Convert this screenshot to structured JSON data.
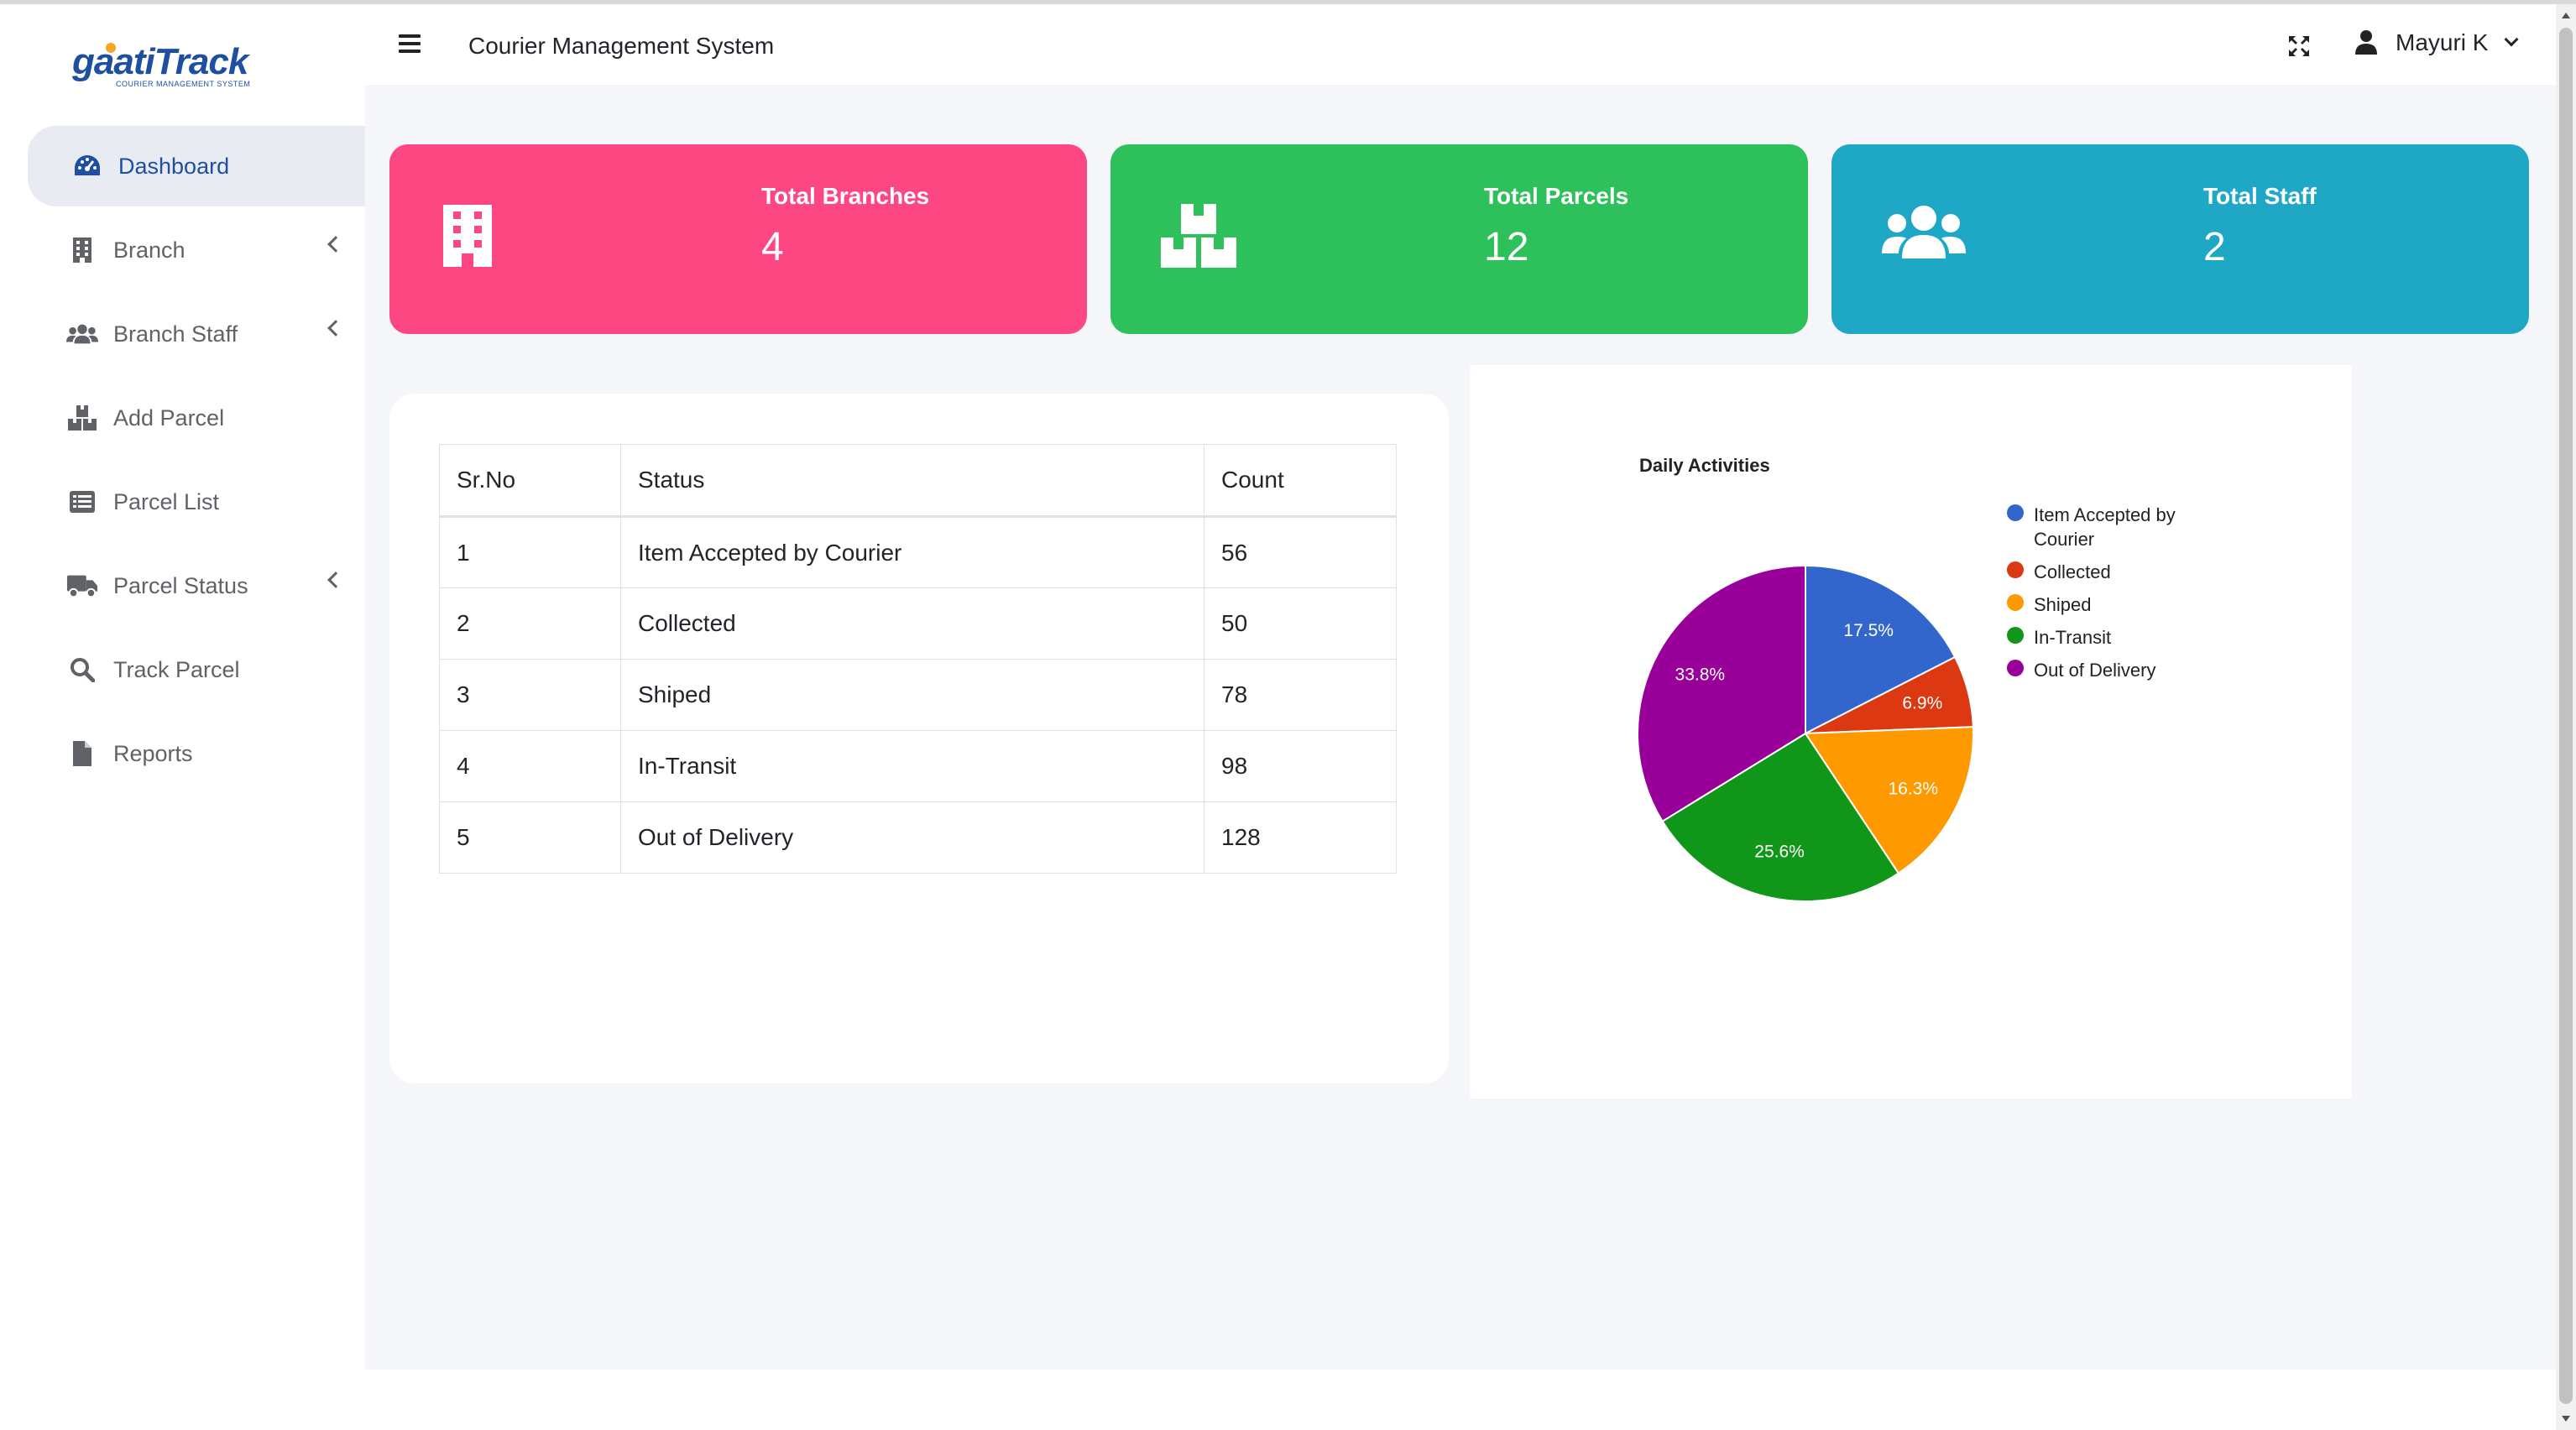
{
  "brand": {
    "logo_text": "gaatiTrack",
    "logo_subtitle": "COURIER MANAGEMENT SYSTEM"
  },
  "sidebar": {
    "items": [
      {
        "label": "Dashboard",
        "icon": "dashboard-gauge-icon",
        "active": true,
        "has_submenu": false
      },
      {
        "label": "Branch",
        "icon": "building-icon",
        "active": false,
        "has_submenu": true
      },
      {
        "label": "Branch Staff",
        "icon": "users-icon",
        "active": false,
        "has_submenu": true
      },
      {
        "label": "Add Parcel",
        "icon": "boxes-icon",
        "active": false,
        "has_submenu": false
      },
      {
        "label": "Parcel List",
        "icon": "list-icon",
        "active": false,
        "has_submenu": false
      },
      {
        "label": "Parcel Status",
        "icon": "truck-icon",
        "active": false,
        "has_submenu": true
      },
      {
        "label": "Track Parcel",
        "icon": "search-icon",
        "active": false,
        "has_submenu": false
      },
      {
        "label": "Reports",
        "icon": "file-icon",
        "active": false,
        "has_submenu": false
      }
    ]
  },
  "header": {
    "title": "Courier Management System",
    "user_name": "Mayuri K"
  },
  "cards": [
    {
      "title": "Total Branches",
      "value": "4",
      "color": "#fd4783",
      "icon": "building-icon"
    },
    {
      "title": "Total Parcels",
      "value": "12",
      "color": "#2ec05a",
      "icon": "boxes-icon"
    },
    {
      "title": "Total Staff",
      "value": "2",
      "color": "#1ea8c6",
      "icon": "users-icon"
    }
  ],
  "status_table": {
    "headers": [
      "Sr.No",
      "Status",
      "Count"
    ],
    "rows": [
      [
        "1",
        "Item Accepted by Courier",
        "56"
      ],
      [
        "2",
        "Collected",
        "50"
      ],
      [
        "3",
        "Shiped",
        "78"
      ],
      [
        "4",
        "In-Transit",
        "98"
      ],
      [
        "5",
        "Out of Delivery",
        "128"
      ]
    ]
  },
  "chart_data": {
    "type": "pie",
    "title": "Daily Activities",
    "legend_position": "right",
    "categories": [
      "Item Accepted by Courier",
      "Collected",
      "Shiped",
      "In-Transit",
      "Out of Delivery"
    ],
    "values": [
      17.5,
      6.9,
      16.3,
      25.6,
      33.8
    ],
    "labels": [
      "17.5%",
      "6.9%",
      "16.3%",
      "25.6%",
      "33.8%"
    ],
    "colors": [
      "#3366cc",
      "#dc3912",
      "#ff9900",
      "#109618",
      "#990099"
    ]
  }
}
